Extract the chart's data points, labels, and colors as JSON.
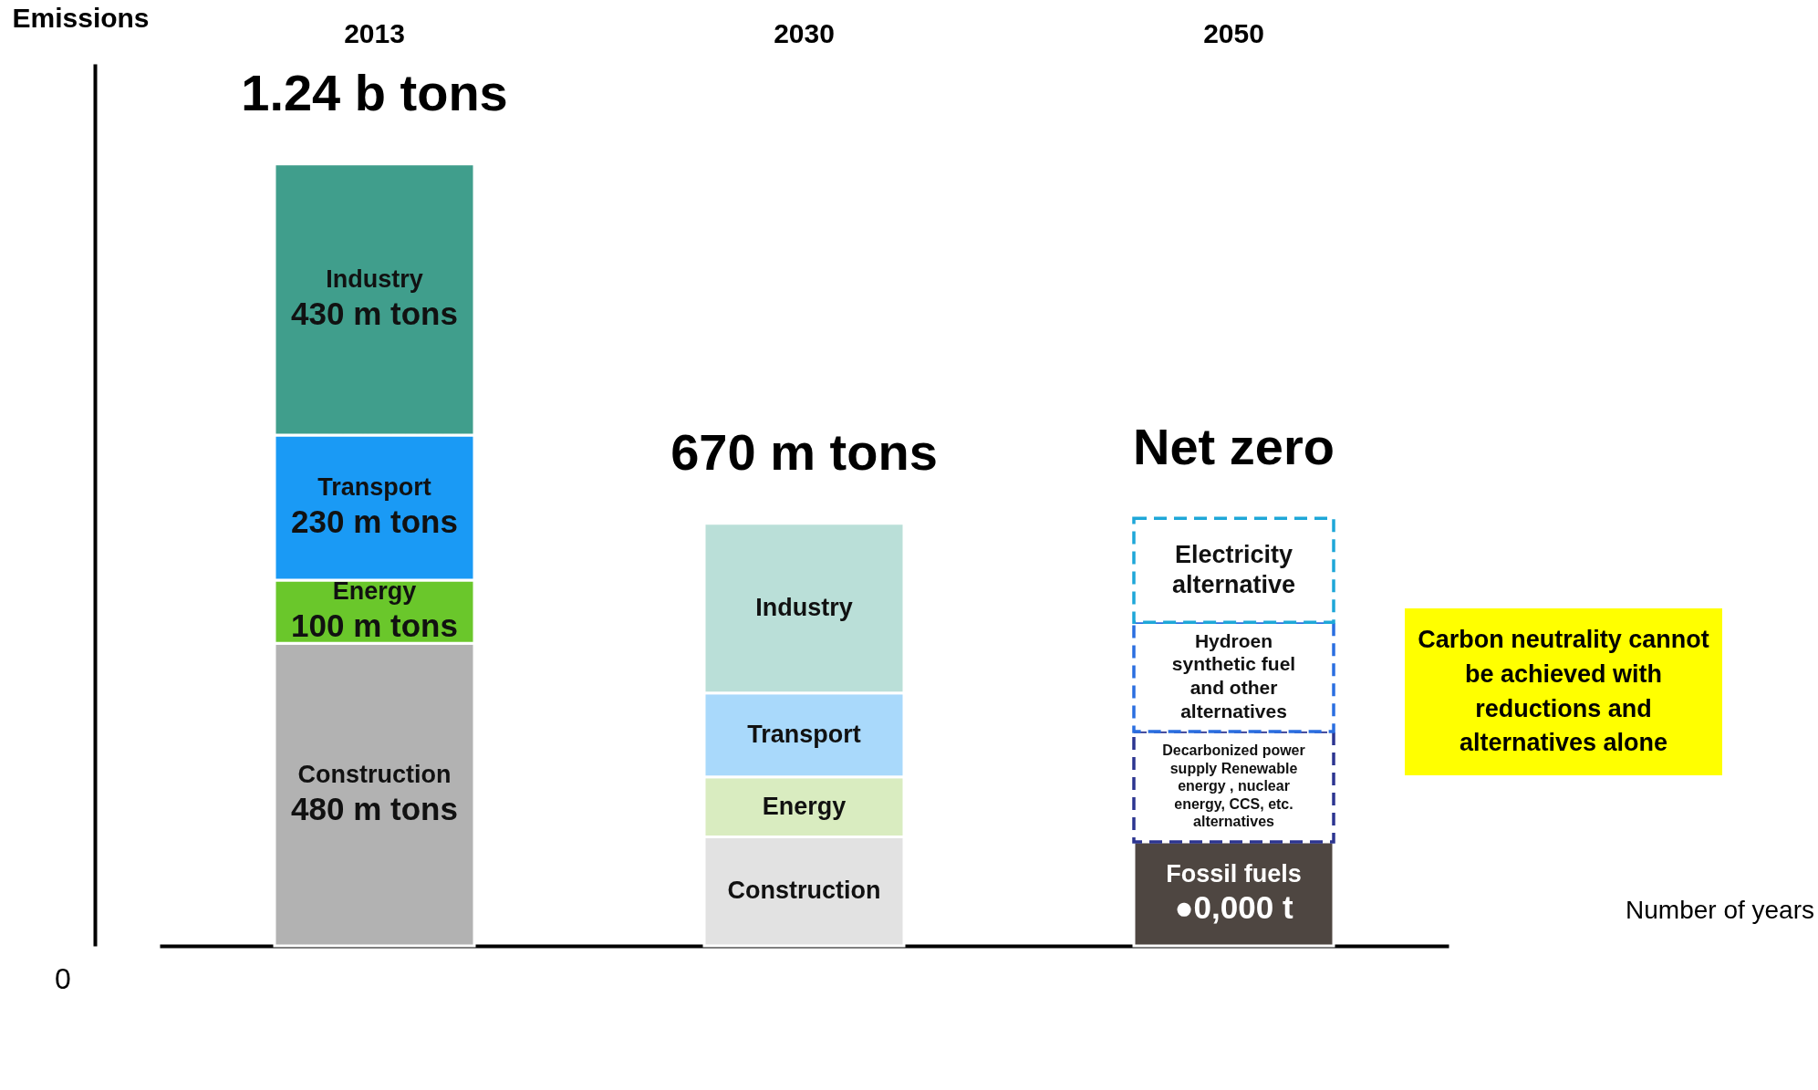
{
  "chart_data": {
    "type": "bar",
    "stacked": true,
    "ylabel": "Emissions",
    "categories": [
      "2013",
      "2030",
      "2050"
    ],
    "totals": [
      "1.24 b tons",
      "670 m tons",
      "Net zero"
    ],
    "series": [
      {
        "name": "Construction",
        "colors": [
          "#b2b2b2",
          "#e2e2e2",
          null
        ],
        "values": [
          480,
          173,
          null
        ],
        "value_labels": [
          "480 m tons",
          null,
          null
        ]
      },
      {
        "name": "Energy",
        "colors": [
          "#6ac72b",
          "#d9ecc0",
          null
        ],
        "values": [
          100,
          95,
          null
        ],
        "value_labels": [
          "100 m tons",
          null,
          null
        ]
      },
      {
        "name": "Transport",
        "colors": [
          "#1a9af5",
          "#a9d9fb",
          null
        ],
        "values": [
          230,
          133,
          null
        ],
        "value_labels": [
          "230 m tons",
          null,
          null
        ]
      },
      {
        "name": "Industry",
        "colors": [
          "#409e8c",
          "#badfd8",
          null
        ],
        "values": [
          430,
          269,
          null
        ],
        "value_labels": [
          "430 m tons",
          null,
          null
        ]
      },
      {
        "name": "Fossil fuels",
        "color": "#4e4641",
        "values": [
          null,
          null,
          165
        ],
        "value_labels": [
          null,
          null,
          "●0,000 t"
        ]
      },
      {
        "name": "Decarbonized power supply Renewable energy , nuclear energy, CCS, etc. alternatives",
        "color": "#2c3590",
        "line_style": "dashed",
        "values": [
          null,
          null,
          175
        ]
      },
      {
        "name": "Hydroen synthetic fuel and other alternatives",
        "color": "#2a6ee0",
        "line_style": "dashed",
        "values": [
          null,
          null,
          173
        ]
      },
      {
        "name": "Electricity alternative",
        "color": "#1ea7d8",
        "line_style": "dashed",
        "values": [
          null,
          null,
          165
        ]
      }
    ],
    "annotations": [
      "0",
      "Number of years",
      "Carbon neutrality cannot be achieved with reductions and alternatives alone"
    ]
  }
}
